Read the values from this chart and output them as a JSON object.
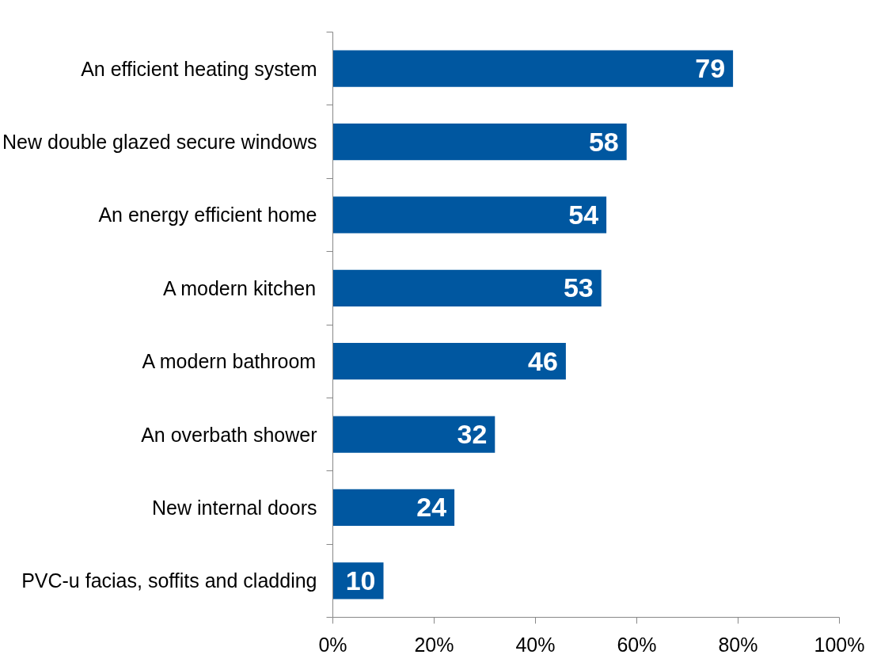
{
  "chart_data": {
    "type": "bar",
    "orientation": "horizontal",
    "categories": [
      "An efficient heating system",
      "New double glazed secure windows",
      "An energy efficient home",
      "A modern kitchen",
      "A modern bathroom",
      "An overbath shower",
      "New internal doors",
      "PVC-u facias, soffits and cladding"
    ],
    "values": [
      79,
      58,
      54,
      53,
      46,
      32,
      24,
      10
    ],
    "color": "#0057a0",
    "xlim": [
      0,
      100
    ],
    "xticks": [
      {
        "value": 0,
        "label": "0%"
      },
      {
        "value": 20,
        "label": "20%"
      },
      {
        "value": 40,
        "label": "40%"
      },
      {
        "value": 60,
        "label": "60%"
      },
      {
        "value": 80,
        "label": "80%"
      },
      {
        "value": 100,
        "label": "100%"
      }
    ],
    "data_labels": true,
    "grid": false
  }
}
